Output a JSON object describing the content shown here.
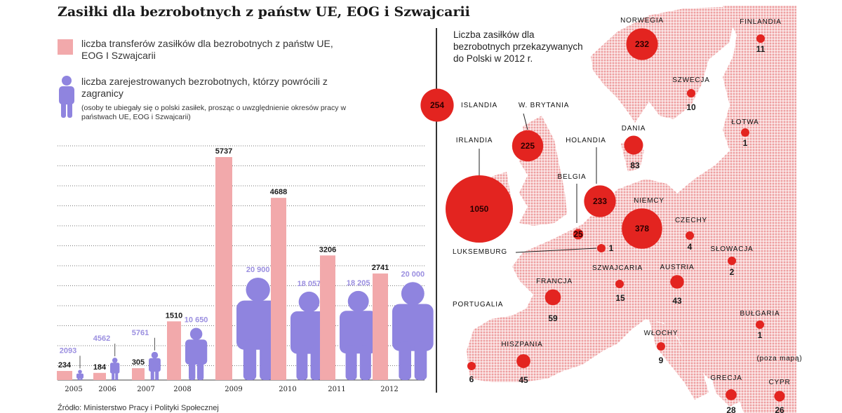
{
  "title": "Zasiłki dla bezrobotnych z państw UE, EOG i Szwajcarii",
  "legend": {
    "transfers": "liczba transferów zasiłków dla bezrobotnych z państw UE, EOG I Szwajcarii",
    "registered": "liczba zarejestrowanych bezrobotnych, którzy powrócili z zagranicy",
    "note": "(osoby te ubiegały się o polski zasiłek, prosząc o uwzględnienie okresów pracy w państwach UE, EOG i Szwajcarii)"
  },
  "source": "Źródło: Ministerstwo Pracy i Polityki Społecznej",
  "colors": {
    "transfers": "#f2a9ab",
    "registered": "#8f84df",
    "registered_label": "#9b8fe0",
    "map_land": "#f0b8b8",
    "bubble": "#e32420"
  },
  "chart_data": [
    {
      "type": "bar",
      "categories": [
        "2005",
        "2006",
        "2007",
        "2008",
        "2009",
        "2010",
        "2011",
        "2012"
      ],
      "series": [
        {
          "name": "liczba transferów zasiłków dla bezrobotnych z państw UE, EOG I Szwajcarii",
          "values": [
            234,
            184,
            305,
            1510,
            5737,
            4688,
            3206,
            2741
          ],
          "labels": [
            "234",
            "184",
            "305",
            "1510",
            "5737",
            "4688",
            "3206",
            "2741"
          ]
        },
        {
          "name": "liczba zarejestrowanych bezrobotnych, którzy powrócili z zagranicy",
          "values": [
            2093,
            4562,
            5761,
            10650,
            20900,
            18057,
            18205,
            20000
          ],
          "labels": [
            "2093",
            "4562",
            "5761",
            "10 650",
            "20 900",
            "18 057",
            "18 205",
            "20 000"
          ]
        }
      ],
      "grid": true
    },
    {
      "type": "bubble-map",
      "title": "Liczba zasiłków dla bezrobotnych przekazywanych do Polski w 2012 r.",
      "points": [
        {
          "country": "NORWEGIA",
          "value": 232,
          "label": "232"
        },
        {
          "country": "FINLANDIA",
          "value": 11,
          "label": "11"
        },
        {
          "country": "SZWECJA",
          "value": 10,
          "label": "10"
        },
        {
          "country": "ŁOTWA",
          "value": 1,
          "label": "1"
        },
        {
          "country": "ISLANDIA",
          "value": 254,
          "label": "254"
        },
        {
          "country": "W. BRYTANIA",
          "value": 225,
          "label": "225"
        },
        {
          "country": "IRLANDIA",
          "value": 1050,
          "label": "1050"
        },
        {
          "country": "DANIA",
          "value": 83,
          "label": "83"
        },
        {
          "country": "HOLANDIA",
          "value": 233,
          "label": "233"
        },
        {
          "country": "BELGIA",
          "value": 25,
          "label": "25"
        },
        {
          "country": "NIEMCY",
          "value": 378,
          "label": "378"
        },
        {
          "country": "CZECHY",
          "value": 4,
          "label": "4"
        },
        {
          "country": "LUKSEMBURG",
          "value": 1,
          "label": "1"
        },
        {
          "country": "SŁOWACJA",
          "value": 2,
          "label": "2"
        },
        {
          "country": "SZWAJCARIA",
          "value": 15,
          "label": "15"
        },
        {
          "country": "AUSTRIA",
          "value": 43,
          "label": "43"
        },
        {
          "country": "FRANCJA",
          "value": 59,
          "label": "59"
        },
        {
          "country": "PORTUGALIA",
          "value": 6,
          "label": "6"
        },
        {
          "country": "BUŁGARIA",
          "value": 1,
          "label": "1"
        },
        {
          "country": "HISZPANIA",
          "value": 45,
          "label": "45"
        },
        {
          "country": "WŁOCHY",
          "value": 9,
          "label": "9"
        },
        {
          "country": "GRECJA",
          "value": 28,
          "label": "28"
        },
        {
          "country": "CYPR",
          "value": 26,
          "label": "26",
          "note": "(poza mapą)"
        }
      ]
    }
  ]
}
